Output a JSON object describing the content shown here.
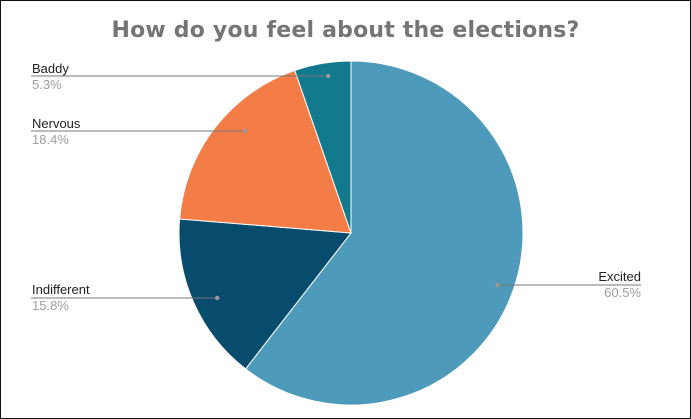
{
  "chart_data": {
    "type": "pie",
    "title": "How do you feel about the elections?",
    "start_angle_deg": 0,
    "direction": "clockwise",
    "slices": [
      {
        "label": "Excited",
        "value": 60.5,
        "display": "60.5%",
        "color": "#4d9aba"
      },
      {
        "label": "Indifferent",
        "value": 15.8,
        "display": "15.8%",
        "color": "#074c6d"
      },
      {
        "label": "Nervous",
        "value": 18.4,
        "display": "18.4%",
        "color": "#f47c47"
      },
      {
        "label": "Baddy",
        "value": 5.3,
        "display": "5.3%",
        "color": "#127a8c"
      }
    ],
    "legend": "none",
    "label_style": "leader-lines"
  }
}
